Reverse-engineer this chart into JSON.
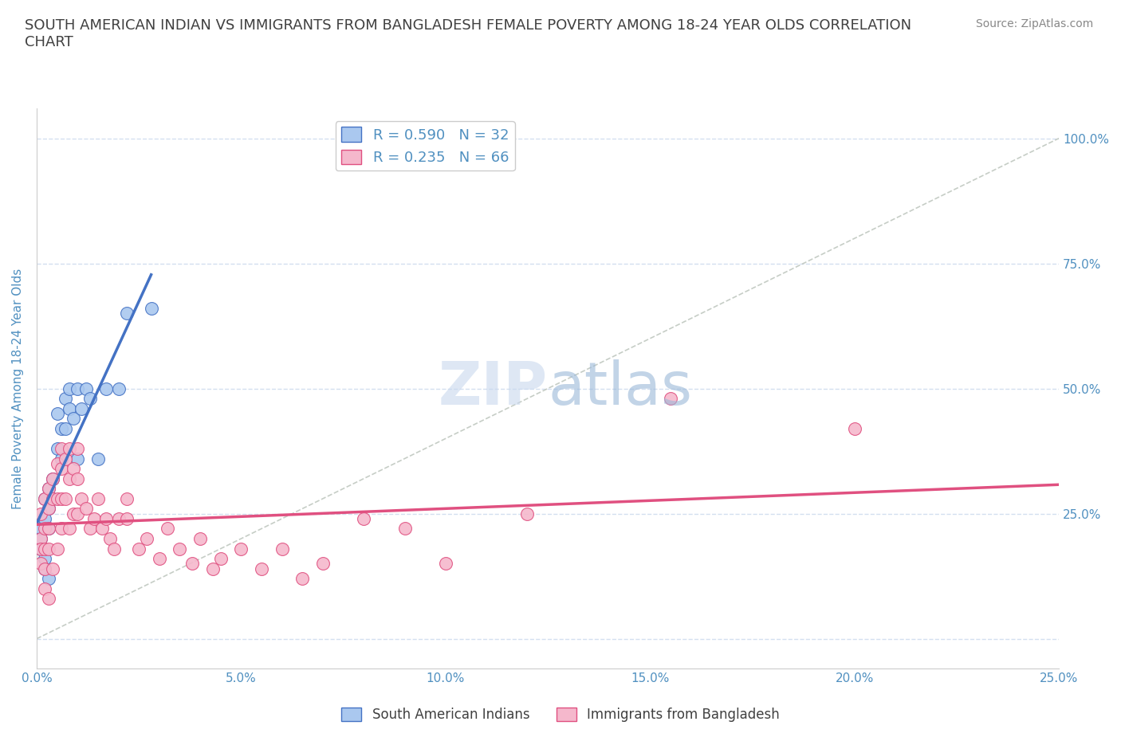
{
  "title": "SOUTH AMERICAN INDIAN VS IMMIGRANTS FROM BANGLADESH FEMALE POVERTY AMONG 18-24 YEAR OLDS CORRELATION\nCHART",
  "source": "Source: ZipAtlas.com",
  "ylabel": "Female Poverty Among 18-24 Year Olds",
  "watermark": "ZIPatlas",
  "legend1_label": "South American Indians",
  "legend2_label": "Immigrants from Bangladesh",
  "R1": 0.59,
  "N1": 32,
  "R2": 0.235,
  "N2": 66,
  "color1": "#aac8ef",
  "color2": "#f5b8cc",
  "line1_color": "#4472c4",
  "line2_color": "#e05080",
  "diag_color": "#c0c8c0",
  "xmin": 0.0,
  "xmax": 0.25,
  "ymin": -0.06,
  "ymax": 1.06,
  "scatter1_x": [
    0.001,
    0.001,
    0.001,
    0.002,
    0.002,
    0.002,
    0.002,
    0.003,
    0.003,
    0.003,
    0.003,
    0.004,
    0.004,
    0.005,
    0.005,
    0.006,
    0.006,
    0.007,
    0.007,
    0.008,
    0.008,
    0.009,
    0.01,
    0.01,
    0.011,
    0.012,
    0.013,
    0.015,
    0.017,
    0.02,
    0.022,
    0.028
  ],
  "scatter1_y": [
    0.2,
    0.22,
    0.18,
    0.28,
    0.24,
    0.16,
    0.14,
    0.3,
    0.26,
    0.22,
    0.12,
    0.32,
    0.28,
    0.38,
    0.45,
    0.42,
    0.36,
    0.48,
    0.42,
    0.5,
    0.46,
    0.44,
    0.36,
    0.5,
    0.46,
    0.5,
    0.48,
    0.36,
    0.5,
    0.5,
    0.65,
    0.66
  ],
  "scatter2_x": [
    0.001,
    0.001,
    0.001,
    0.001,
    0.002,
    0.002,
    0.002,
    0.002,
    0.002,
    0.003,
    0.003,
    0.003,
    0.003,
    0.003,
    0.004,
    0.004,
    0.004,
    0.005,
    0.005,
    0.005,
    0.006,
    0.006,
    0.006,
    0.006,
    0.007,
    0.007,
    0.008,
    0.008,
    0.008,
    0.009,
    0.009,
    0.01,
    0.01,
    0.01,
    0.011,
    0.012,
    0.013,
    0.014,
    0.015,
    0.016,
    0.017,
    0.018,
    0.019,
    0.02,
    0.022,
    0.022,
    0.025,
    0.027,
    0.03,
    0.032,
    0.035,
    0.038,
    0.04,
    0.043,
    0.045,
    0.05,
    0.055,
    0.06,
    0.065,
    0.07,
    0.08,
    0.09,
    0.1,
    0.12,
    0.155,
    0.2
  ],
  "scatter2_y": [
    0.2,
    0.25,
    0.18,
    0.15,
    0.28,
    0.22,
    0.18,
    0.14,
    0.1,
    0.3,
    0.26,
    0.22,
    0.18,
    0.08,
    0.32,
    0.28,
    0.14,
    0.35,
    0.28,
    0.18,
    0.38,
    0.34,
    0.28,
    0.22,
    0.36,
    0.28,
    0.38,
    0.32,
    0.22,
    0.34,
    0.25,
    0.38,
    0.32,
    0.25,
    0.28,
    0.26,
    0.22,
    0.24,
    0.28,
    0.22,
    0.24,
    0.2,
    0.18,
    0.24,
    0.28,
    0.24,
    0.18,
    0.2,
    0.16,
    0.22,
    0.18,
    0.15,
    0.2,
    0.14,
    0.16,
    0.18,
    0.14,
    0.18,
    0.12,
    0.15,
    0.24,
    0.22,
    0.15,
    0.25,
    0.48,
    0.42
  ],
  "xtick_labels": [
    "0.0%",
    "5.0%",
    "10.0%",
    "15.0%",
    "20.0%",
    "25.0%"
  ],
  "xtick_values": [
    0.0,
    0.05,
    0.1,
    0.15,
    0.2,
    0.25
  ],
  "ytick_values": [
    0.0,
    0.25,
    0.5,
    0.75,
    1.0
  ],
  "background_color": "#ffffff",
  "grid_color": "#c8d8ec",
  "title_color": "#404040",
  "axis_label_color": "#5090c0",
  "source_color": "#888888"
}
